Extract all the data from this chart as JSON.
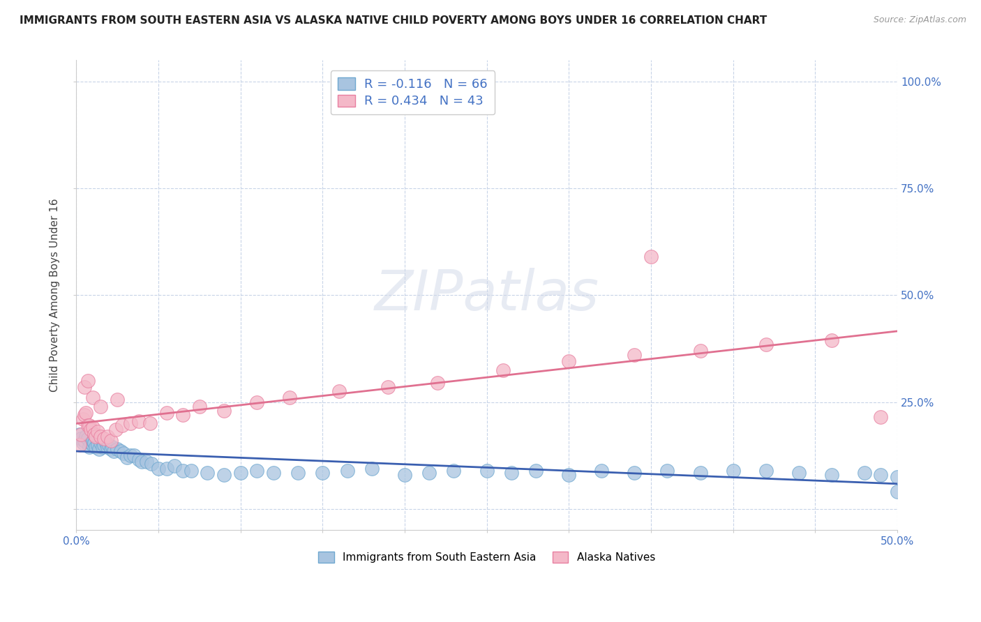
{
  "title": "IMMIGRANTS FROM SOUTH EASTERN ASIA VS ALASKA NATIVE CHILD POVERTY AMONG BOYS UNDER 16 CORRELATION CHART",
  "source": "Source: ZipAtlas.com",
  "ylabel": "Child Poverty Among Boys Under 16",
  "xlim": [
    0.0,
    0.5
  ],
  "ylim": [
    -0.05,
    1.05
  ],
  "xticks": [
    0.0,
    0.05,
    0.1,
    0.15,
    0.2,
    0.25,
    0.3,
    0.35,
    0.4,
    0.45,
    0.5
  ],
  "xticklabels": [
    "0.0%",
    "",
    "",
    "",
    "",
    "",
    "",
    "",
    "",
    "",
    "50.0%"
  ],
  "ytick_positions": [
    0.0,
    0.25,
    0.5,
    0.75,
    1.0
  ],
  "yticklabels_right": [
    "",
    "25.0%",
    "50.0%",
    "75.0%",
    "100.0%"
  ],
  "series1_color": "#a8c4e0",
  "series1_edge": "#6fa8d0",
  "series2_color": "#f4b8c8",
  "series2_edge": "#e87fa0",
  "line1_color": "#3a5fb0",
  "line2_color": "#e07090",
  "R1": -0.116,
  "N1": 66,
  "R2": 0.434,
  "N2": 43,
  "legend_label1": "Immigrants from South Eastern Asia",
  "legend_label2": "Alaska Natives",
  "watermark": "ZIPatlas",
  "background_color": "#ffffff",
  "grid_color": "#c8d4e8",
  "series1_x": [
    0.002,
    0.003,
    0.004,
    0.005,
    0.006,
    0.007,
    0.008,
    0.009,
    0.01,
    0.01,
    0.011,
    0.012,
    0.013,
    0.014,
    0.015,
    0.016,
    0.017,
    0.018,
    0.019,
    0.02,
    0.021,
    0.022,
    0.023,
    0.025,
    0.027,
    0.029,
    0.031,
    0.033,
    0.035,
    0.038,
    0.04,
    0.043,
    0.046,
    0.05,
    0.055,
    0.06,
    0.065,
    0.07,
    0.08,
    0.09,
    0.1,
    0.11,
    0.12,
    0.135,
    0.15,
    0.165,
    0.18,
    0.2,
    0.215,
    0.23,
    0.25,
    0.265,
    0.28,
    0.3,
    0.32,
    0.34,
    0.36,
    0.38,
    0.4,
    0.42,
    0.44,
    0.46,
    0.48,
    0.49,
    0.5,
    0.5
  ],
  "series1_y": [
    0.175,
    0.165,
    0.155,
    0.16,
    0.17,
    0.165,
    0.145,
    0.155,
    0.15,
    0.16,
    0.155,
    0.145,
    0.15,
    0.14,
    0.155,
    0.145,
    0.15,
    0.155,
    0.145,
    0.15,
    0.14,
    0.145,
    0.135,
    0.14,
    0.135,
    0.13,
    0.12,
    0.125,
    0.125,
    0.115,
    0.11,
    0.11,
    0.105,
    0.095,
    0.095,
    0.1,
    0.09,
    0.09,
    0.085,
    0.08,
    0.085,
    0.09,
    0.085,
    0.085,
    0.085,
    0.09,
    0.095,
    0.08,
    0.085,
    0.09,
    0.09,
    0.085,
    0.09,
    0.08,
    0.09,
    0.085,
    0.09,
    0.085,
    0.09,
    0.09,
    0.085,
    0.08,
    0.085,
    0.08,
    0.075,
    0.04
  ],
  "series2_x": [
    0.002,
    0.003,
    0.004,
    0.005,
    0.006,
    0.007,
    0.008,
    0.009,
    0.01,
    0.011,
    0.012,
    0.013,
    0.015,
    0.017,
    0.019,
    0.021,
    0.024,
    0.028,
    0.033,
    0.038,
    0.045,
    0.055,
    0.065,
    0.075,
    0.09,
    0.11,
    0.13,
    0.16,
    0.19,
    0.22,
    0.26,
    0.3,
    0.34,
    0.38,
    0.42,
    0.46,
    0.49,
    0.005,
    0.007,
    0.01,
    0.015,
    0.025,
    0.35
  ],
  "series2_y": [
    0.15,
    0.175,
    0.21,
    0.22,
    0.225,
    0.195,
    0.195,
    0.185,
    0.19,
    0.175,
    0.17,
    0.18,
    0.17,
    0.165,
    0.17,
    0.16,
    0.185,
    0.195,
    0.2,
    0.205,
    0.2,
    0.225,
    0.22,
    0.24,
    0.23,
    0.25,
    0.26,
    0.275,
    0.285,
    0.295,
    0.325,
    0.345,
    0.36,
    0.37,
    0.385,
    0.395,
    0.215,
    0.285,
    0.3,
    0.26,
    0.24,
    0.255,
    0.59
  ]
}
